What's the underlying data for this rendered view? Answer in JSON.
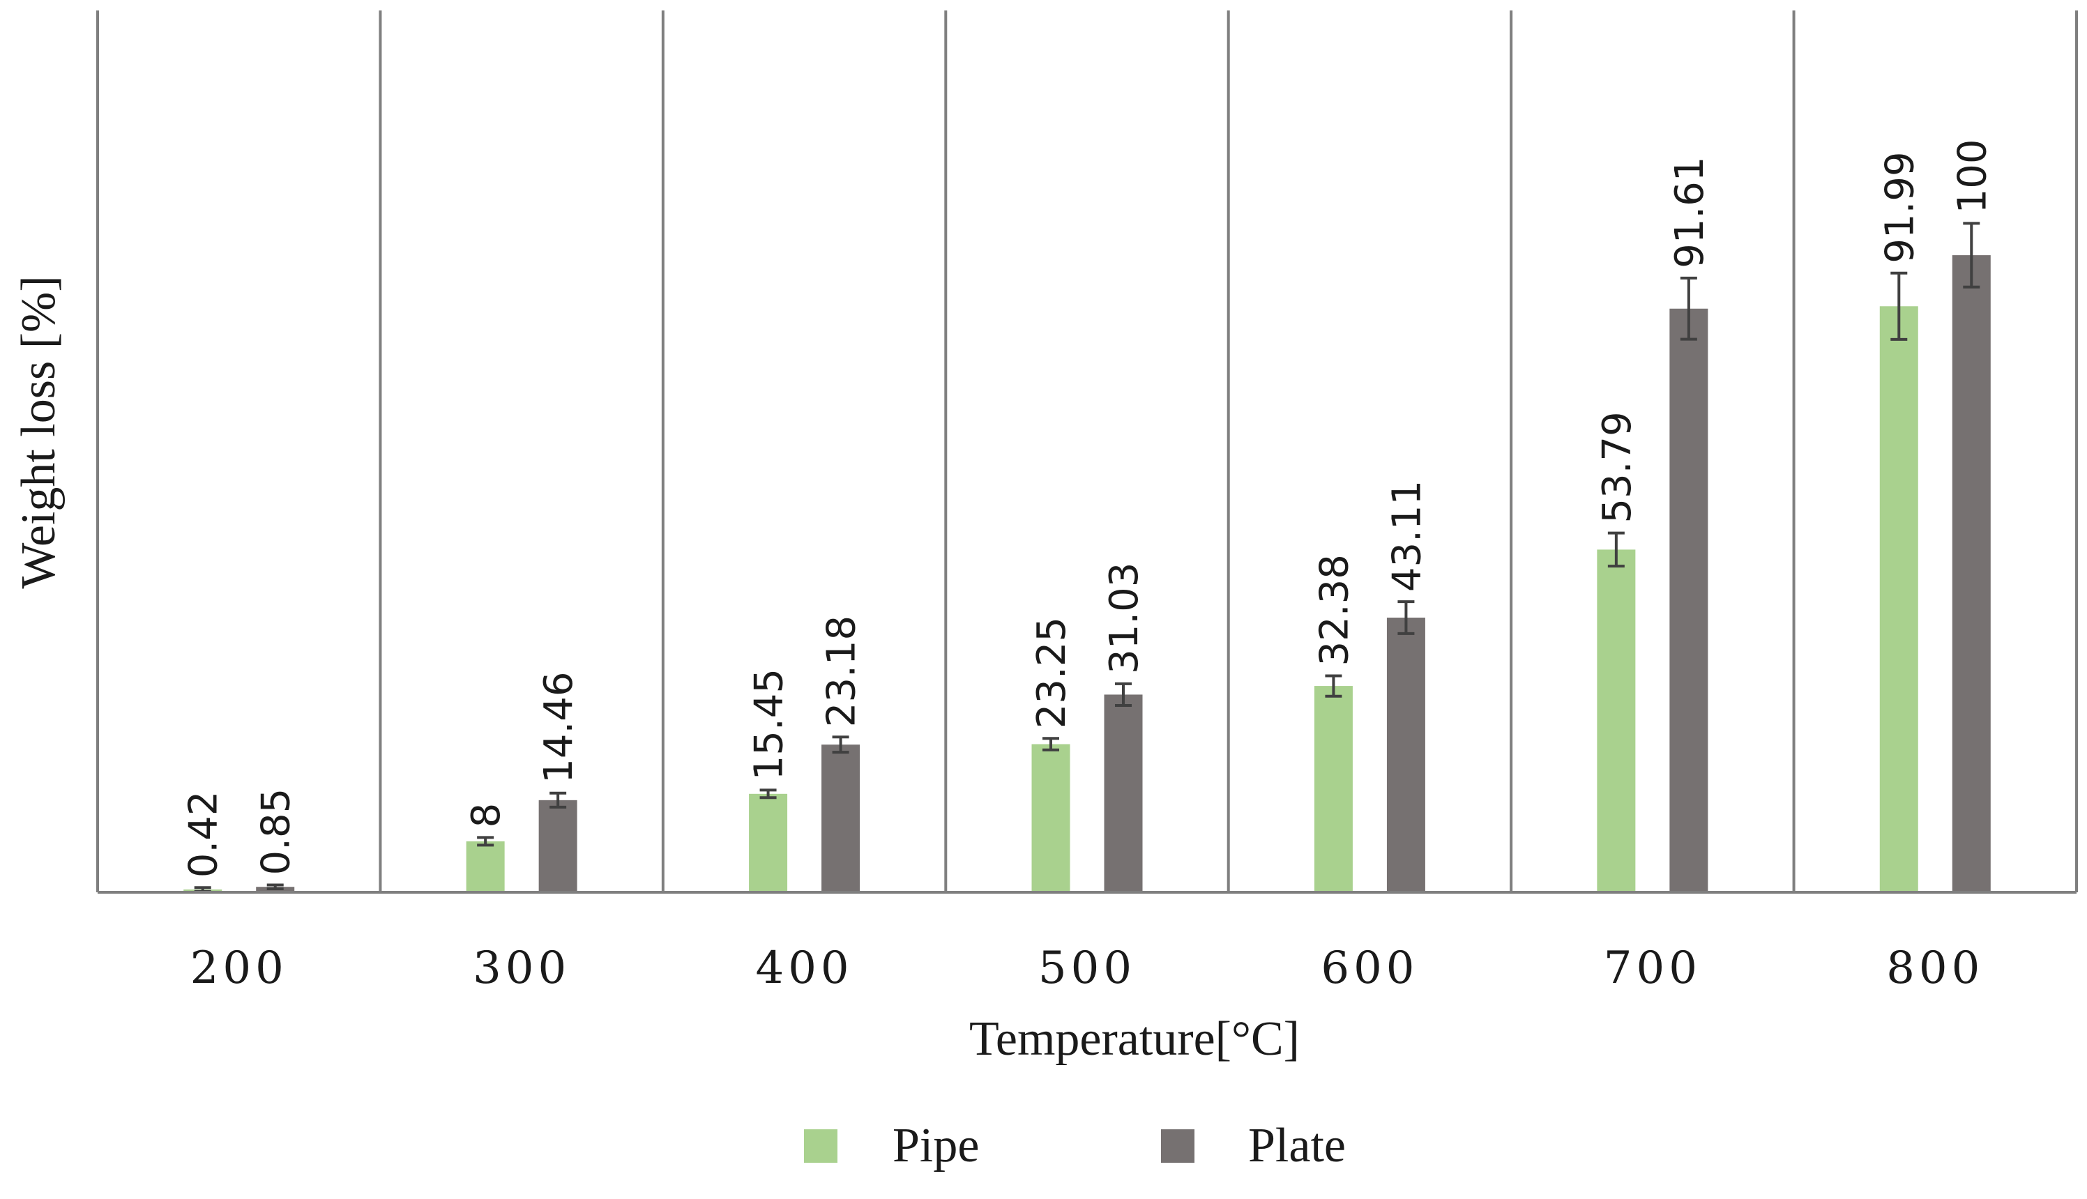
{
  "chart_data": {
    "type": "bar",
    "xlabel": "Temperature[°C]",
    "ylabel": "Weight loss [%]",
    "categories": [
      "200",
      "300",
      "400",
      "500",
      "600",
      "700",
      "800"
    ],
    "ylim": [
      0,
      115
    ],
    "grid": "vertical separators between categories",
    "legend_position": "bottom",
    "series": [
      {
        "name": "Pipe",
        "color": "#a9d18e",
        "values": [
          0.42,
          8,
          15.45,
          23.25,
          32.38,
          53.79,
          91.99
        ],
        "labels": [
          "0.42",
          "8",
          "15.45",
          "23.25",
          "32.38",
          "53.79",
          "91.99"
        ],
        "errors": [
          0.3,
          0.6,
          0.6,
          0.9,
          1.6,
          2.6,
          5.2
        ]
      },
      {
        "name": "Plate",
        "color": "#767171",
        "values": [
          0.85,
          14.46,
          23.18,
          31.03,
          43.11,
          91.61,
          100
        ],
        "labels": [
          "0.85",
          "14.46",
          "23.18",
          "31.03",
          "43.11",
          "91.61",
          "100"
        ],
        "errors": [
          0.3,
          1.1,
          1.2,
          1.7,
          2.5,
          4.8,
          5.0
        ]
      }
    ]
  }
}
